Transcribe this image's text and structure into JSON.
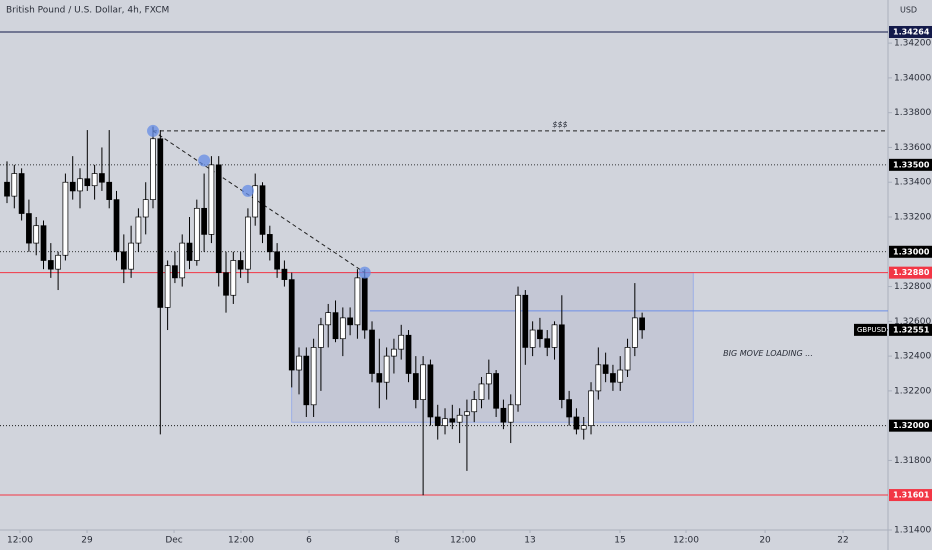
{
  "chart_data": {
    "type": "candlestick",
    "title": "British Pound / U.S. Dollar, 4h, FXCM",
    "currency": "USD",
    "up_color": "#ffffff",
    "down_color": "#000000",
    "x": [
      0,
      1,
      2,
      3,
      4,
      5,
      6,
      7,
      8,
      9,
      10,
      11,
      12,
      13,
      14,
      15,
      16,
      17,
      18,
      19,
      20,
      21,
      22,
      23,
      24,
      25,
      26,
      27,
      28,
      29,
      30,
      31,
      32,
      33,
      34,
      35,
      36,
      37,
      38,
      39,
      40,
      41,
      42,
      43,
      44,
      45,
      46,
      47,
      48,
      49,
      50,
      51,
      52,
      53,
      54,
      55,
      56,
      57,
      58,
      59,
      60,
      61,
      62,
      63,
      64,
      65,
      66,
      67,
      68,
      69,
      70,
      71,
      72,
      73,
      74,
      75,
      76,
      77,
      78,
      79,
      80,
      81,
      82,
      83,
      84,
      85,
      86,
      87
    ],
    "open": [
      1.334,
      1.3332,
      1.3345,
      1.3322,
      1.3305,
      1.3315,
      1.3295,
      1.329,
      1.3298,
      1.334,
      1.3335,
      1.3342,
      1.3338,
      1.3345,
      1.334,
      1.333,
      1.33,
      1.329,
      1.3305,
      1.332,
      1.333,
      1.3365,
      1.3268,
      1.3292,
      1.3285,
      1.3305,
      1.3295,
      1.3325,
      1.331,
      1.335,
      1.3288,
      1.3275,
      1.3295,
      1.329,
      1.332,
      1.3338,
      1.331,
      1.33,
      1.329,
      1.3284,
      1.3232,
      1.324,
      1.3212,
      1.3245,
      1.3258,
      1.3265,
      1.325,
      1.3262,
      1.3258,
      1.3285,
      1.3255,
      1.323,
      1.3225,
      1.324,
      1.3244,
      1.3252,
      1.323,
      1.3215,
      1.3235,
      1.3205,
      1.32,
      1.3204,
      1.3202,
      1.3206,
      1.3208,
      1.3215,
      1.3224,
      1.323,
      1.321,
      1.3202,
      1.3212,
      1.3275,
      1.3245,
      1.3255,
      1.325,
      1.3245,
      1.3258,
      1.3215,
      1.3205,
      1.3198,
      1.32,
      1.322,
      1.3235,
      1.323,
      1.3225,
      1.3232,
      1.3245,
      1.3262
    ],
    "high": [
      1.3352,
      1.335,
      1.3348,
      1.333,
      1.332,
      1.3318,
      1.3305,
      1.33,
      1.3345,
      1.3355,
      1.3348,
      1.337,
      1.335,
      1.336,
      1.337,
      1.3335,
      1.331,
      1.3315,
      1.3325,
      1.334,
      1.3372,
      1.337,
      1.3295,
      1.33,
      1.331,
      1.332,
      1.333,
      1.3345,
      1.3355,
      1.3355,
      1.33,
      1.33,
      1.33,
      1.3325,
      1.3345,
      1.334,
      1.3315,
      1.3305,
      1.3295,
      1.3288,
      1.3245,
      1.3245,
      1.325,
      1.3262,
      1.327,
      1.3272,
      1.3268,
      1.3268,
      1.329,
      1.329,
      1.326,
      1.325,
      1.3245,
      1.325,
      1.3258,
      1.3255,
      1.324,
      1.324,
      1.3238,
      1.3212,
      1.321,
      1.3212,
      1.321,
      1.3215,
      1.322,
      1.3228,
      1.3238,
      1.3232,
      1.3215,
      1.3218,
      1.328,
      1.3278,
      1.326,
      1.3262,
      1.3255,
      1.326,
      1.3275,
      1.322,
      1.321,
      1.3205,
      1.3225,
      1.3245,
      1.3242,
      1.3235,
      1.324,
      1.325,
      1.3282,
      1.3265
    ],
    "low": [
      1.3328,
      1.3325,
      1.3318,
      1.33,
      1.3298,
      1.329,
      1.3285,
      1.3278,
      1.3295,
      1.333,
      1.3325,
      1.3335,
      1.333,
      1.3335,
      1.3325,
      1.3295,
      1.3282,
      1.3285,
      1.33,
      1.331,
      1.3325,
      1.3195,
      1.3255,
      1.3282,
      1.328,
      1.329,
      1.3292,
      1.33,
      1.3305,
      1.328,
      1.3265,
      1.327,
      1.3285,
      1.3282,
      1.3315,
      1.3305,
      1.3295,
      1.3285,
      1.328,
      1.3222,
      1.3218,
      1.3205,
      1.3205,
      1.322,
      1.3245,
      1.3248,
      1.324,
      1.3252,
      1.325,
      1.325,
      1.3225,
      1.321,
      1.3215,
      1.323,
      1.3238,
      1.3225,
      1.321,
      1.316,
      1.32,
      1.3192,
      1.3195,
      1.3198,
      1.319,
      1.3174,
      1.3202,
      1.321,
      1.3215,
      1.3205,
      1.3198,
      1.319,
      1.3208,
      1.3235,
      1.324,
      1.3245,
      1.324,
      1.3238,
      1.321,
      1.32,
      1.3195,
      1.3192,
      1.3195,
      1.3215,
      1.3225,
      1.322,
      1.322,
      1.3228,
      1.324,
      1.325
    ],
    "close": [
      1.3332,
      1.3345,
      1.3322,
      1.3305,
      1.3315,
      1.3295,
      1.329,
      1.3298,
      1.334,
      1.3335,
      1.3342,
      1.3338,
      1.3345,
      1.334,
      1.333,
      1.33,
      1.329,
      1.3305,
      1.332,
      1.333,
      1.3365,
      1.3268,
      1.3292,
      1.3285,
      1.3305,
      1.3295,
      1.3325,
      1.331,
      1.335,
      1.3288,
      1.3275,
      1.3295,
      1.329,
      1.332,
      1.3338,
      1.331,
      1.33,
      1.329,
      1.3284,
      1.3232,
      1.324,
      1.3212,
      1.3245,
      1.3258,
      1.3265,
      1.325,
      1.3262,
      1.3258,
      1.3285,
      1.3255,
      1.323,
      1.3225,
      1.324,
      1.3244,
      1.3252,
      1.323,
      1.3215,
      1.3235,
      1.3205,
      1.32,
      1.3204,
      1.3202,
      1.3206,
      1.3208,
      1.3215,
      1.3224,
      1.323,
      1.321,
      1.3202,
      1.3212,
      1.3275,
      1.3245,
      1.3255,
      1.325,
      1.3245,
      1.3258,
      1.3215,
      1.3205,
      1.3198,
      1.32,
      1.322,
      1.3235,
      1.323,
      1.3225,
      1.3232,
      1.3245,
      1.3262,
      1.32551
    ],
    "xlim": [
      -0.96,
      120.68
    ],
    "ylim": [
      1.314,
      1.34448
    ],
    "xticks": [
      {
        "value": 1.78,
        "label": "12:00"
      },
      {
        "value": 10.96,
        "label": "29"
      },
      {
        "value": 22.88,
        "label": "Dec"
      },
      {
        "value": 32.05,
        "label": "12:00"
      },
      {
        "value": 41.37,
        "label": "6"
      },
      {
        "value": 53.42,
        "label": "8"
      },
      {
        "value": 62.47,
        "label": "12:00"
      },
      {
        "value": 71.64,
        "label": "13"
      },
      {
        "value": 83.97,
        "label": "15"
      },
      {
        "value": 93.01,
        "label": "12:00"
      },
      {
        "value": 103.84,
        "label": "20"
      },
      {
        "value": 114.52,
        "label": "22"
      }
    ],
    "yticks": [
      {
        "value": 1.342,
        "label": "1.34200"
      },
      {
        "value": 1.34,
        "label": "1.34000"
      },
      {
        "value": 1.338,
        "label": "1.33800"
      },
      {
        "value": 1.336,
        "label": "1.33600"
      },
      {
        "value": 1.334,
        "label": "1.33400"
      },
      {
        "value": 1.332,
        "label": "1.33200"
      },
      {
        "value": 1.328,
        "label": "1.32800"
      },
      {
        "value": 1.326,
        "label": "1.32600"
      },
      {
        "value": 1.324,
        "label": "1.32400"
      },
      {
        "value": 1.322,
        "label": "1.32200"
      },
      {
        "value": 1.318,
        "label": "1.31800"
      },
      {
        "value": 1.314,
        "label": "1.31400"
      }
    ],
    "levels": [
      {
        "value": 1.34264,
        "label": "1.34264",
        "color": "#131a4a",
        "style": "solid"
      },
      {
        "value": 1.335,
        "label": "1.33500",
        "color": "#000000",
        "style": "dotted"
      },
      {
        "value": 1.33,
        "label": "1.33000",
        "color": "#000000",
        "style": "dotted"
      },
      {
        "value": 1.3288,
        "label": "1.32880",
        "color": "#f23645",
        "style": "solid"
      },
      {
        "value": 1.32,
        "label": "1.32000",
        "color": "#000000",
        "style": "dotted"
      },
      {
        "value": 1.31601,
        "label": "1.31601",
        "color": "#f23645",
        "style": "solid"
      },
      {
        "value": 1.3266,
        "color": "#6e8fe6",
        "style": "solid",
        "x_from": 49.7
      }
    ],
    "last_price": {
      "symbol": "GBPUSD",
      "value": 1.32551,
      "label": "1.32551"
    },
    "trendline": {
      "x": [
        20,
        49
      ],
      "y": [
        1.33695,
        1.3288
      ]
    },
    "touch_points": [
      {
        "x": 20,
        "y": 1.33695
      },
      {
        "x": 27,
        "y": 1.33525
      },
      {
        "x": 33,
        "y": 1.3335
      },
      {
        "x": 49,
        "y": 1.3288
      }
    ],
    "liquidity_line": {
      "x_from": 20,
      "y": 1.33695,
      "text": "$$$",
      "text_x": 75.75,
      "text_y": 1.3372
    },
    "zone": {
      "x": [
        39,
        94
      ],
      "y": [
        1.3202,
        1.3288
      ]
    },
    "annotation": {
      "text": "BIG MOVE LOADING ...",
      "x": 98.1,
      "y": 1.32415
    }
  }
}
